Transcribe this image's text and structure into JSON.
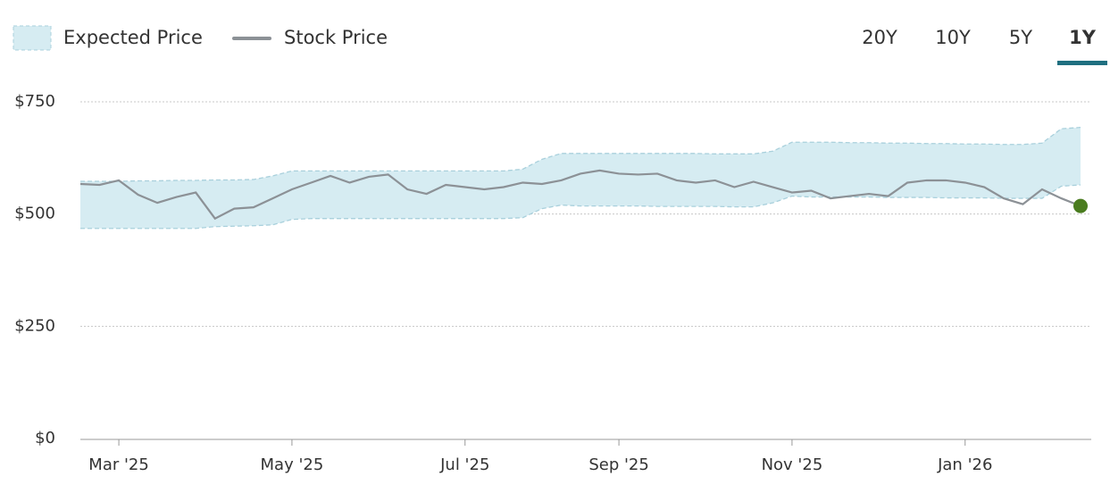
{
  "chart_data": {
    "type": "band-line",
    "categories": [
      null,
      null,
      "Mar '25",
      null,
      null,
      null,
      null,
      null,
      null,
      null,
      null,
      "May '25",
      null,
      null,
      null,
      null,
      null,
      null,
      null,
      null,
      "Jul '25",
      null,
      null,
      null,
      null,
      null,
      null,
      null,
      "Sep '25",
      null,
      null,
      null,
      null,
      null,
      null,
      null,
      null,
      "Nov '25",
      null,
      null,
      null,
      null,
      null,
      null,
      null,
      null,
      "Jan '26",
      null,
      null,
      null,
      null,
      null,
      null
    ],
    "band": {
      "name": "Expected Price",
      "color": "#d6ecf2",
      "edge_color": "#a9d0dc",
      "upper": [
        573,
        573,
        573,
        574,
        574,
        575,
        575,
        576,
        576,
        577,
        585,
        596,
        596,
        596,
        596,
        596,
        596,
        596,
        596,
        596,
        596,
        596,
        596,
        600,
        622,
        635,
        635,
        635,
        635,
        635,
        635,
        635,
        635,
        634,
        634,
        634,
        640,
        660,
        660,
        660,
        659,
        659,
        658,
        658,
        657,
        657,
        656,
        656,
        655,
        655,
        658,
        690,
        693
      ],
      "lower": [
        468,
        468,
        468,
        468,
        468,
        468,
        468,
        472,
        473,
        474,
        476,
        488,
        490,
        490,
        490,
        490,
        490,
        490,
        490,
        490,
        490,
        490,
        490,
        492,
        512,
        520,
        518,
        518,
        518,
        518,
        517,
        517,
        517,
        517,
        516,
        516,
        525,
        540,
        538,
        538,
        538,
        538,
        537,
        537,
        537,
        536,
        536,
        536,
        535,
        535,
        535,
        562,
        565
      ]
    },
    "series": [
      {
        "name": "Stock Price",
        "color": "#8c9196",
        "end_color": "#4a7c1f",
        "values": [
          567,
          565,
          575,
          543,
          525,
          538,
          548,
          490,
          512,
          515,
          535,
          555,
          570,
          585,
          570,
          583,
          588,
          555,
          545,
          565,
          560,
          555,
          560,
          570,
          567,
          575,
          590,
          597,
          590,
          588,
          590,
          575,
          570,
          575,
          560,
          572,
          560,
          548,
          552,
          535,
          540,
          545,
          540,
          570,
          575,
          575,
          570,
          560,
          535,
          522,
          555,
          535,
          518
        ]
      }
    ],
    "ylim": [
      0,
      750
    ],
    "yticks": [
      {
        "value": 0,
        "label": "$0"
      },
      {
        "value": 250,
        "label": "$250"
      },
      {
        "value": 500,
        "label": "$500"
      },
      {
        "value": 750,
        "label": "$750"
      }
    ],
    "grid": true
  },
  "controls": {
    "ranges": [
      "20Y",
      "10Y",
      "5Y",
      "1Y"
    ],
    "selected": 3
  }
}
